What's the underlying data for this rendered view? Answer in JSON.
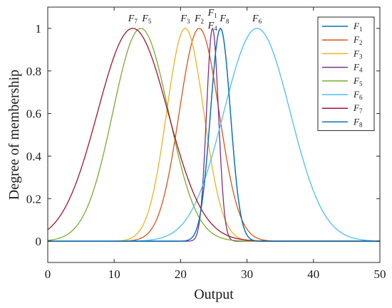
{
  "chart_data": {
    "type": "line",
    "title": "",
    "xlabel": "Output",
    "ylabel": "Degree of membership",
    "xlim": [
      0,
      50
    ],
    "ylim": [
      -0.1,
      1.1
    ],
    "xticks": [
      0,
      10,
      20,
      30,
      40,
      50
    ],
    "yticks": [
      0,
      0.2,
      0.4,
      0.6,
      0.8,
      1
    ],
    "grid": false,
    "legend_position": "top-right",
    "series": [
      {
        "name": "F1",
        "base": "F",
        "sub": "1",
        "color": "#0072BD",
        "center": 26.0,
        "sigma": 1.5
      },
      {
        "name": "F2",
        "base": "F",
        "sub": "2",
        "color": "#D95319",
        "center": 22.8,
        "sigma": 3.0
      },
      {
        "name": "F3",
        "base": "F",
        "sub": "3",
        "color": "#EDB120",
        "center": 20.7,
        "sigma": 2.8
      },
      {
        "name": "F4",
        "base": "F",
        "sub": "4",
        "color": "#7E2F8E",
        "center": 24.8,
        "sigma": 0.9
      },
      {
        "name": "F5",
        "base": "F",
        "sub": "5",
        "color": "#77AC30",
        "center": 14.0,
        "sigma": 4.2
      },
      {
        "name": "F6",
        "base": "F",
        "sub": "6",
        "color": "#4DBEEE",
        "center": 31.5,
        "sigma": 5.0
      },
      {
        "name": "F7",
        "base": "F",
        "sub": "7",
        "color": "#A2142F",
        "center": 12.8,
        "sigma": 5.3
      },
      {
        "name": "F8",
        "base": "F",
        "sub": "8",
        "color": "#0072BD",
        "center": 26.0,
        "sigma": 1.5
      }
    ],
    "peak_annotations": [
      {
        "base": "F",
        "sub": "7",
        "x": 12.8,
        "row": 1
      },
      {
        "base": "F",
        "sub": "5",
        "x": 14.9,
        "row": 1
      },
      {
        "base": "F",
        "sub": "3",
        "x": 20.7,
        "row": 1
      },
      {
        "base": "F",
        "sub": "2",
        "x": 22.8,
        "row": 1
      },
      {
        "base": "F",
        "sub": "1",
        "x": 24.8,
        "row": 0
      },
      {
        "base": "F",
        "sub": "4",
        "x": 24.8,
        "row": 2
      },
      {
        "base": "F",
        "sub": "8",
        "x": 26.6,
        "row": 1
      },
      {
        "base": "F",
        "sub": "6",
        "x": 31.5,
        "row": 1
      }
    ]
  }
}
